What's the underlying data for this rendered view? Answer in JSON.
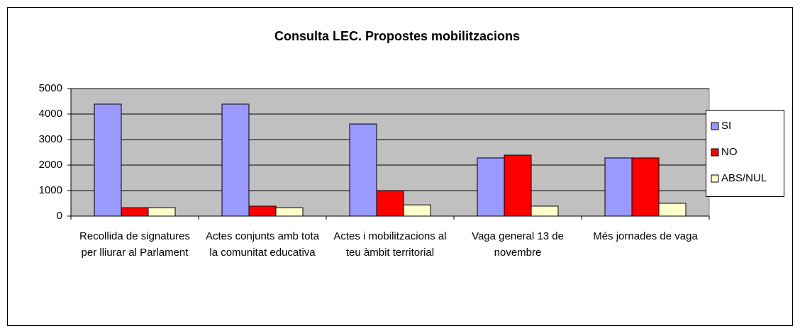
{
  "chart_data": {
    "type": "bar",
    "title": "Consulta LEC. Propostes mobilitzacions",
    "categories": [
      "Recollida de signatures per lliurar al Parlament",
      "Actes conjunts amb tota la comunitat educativa",
      "Actes i mobilitzacions al teu àmbit territorial",
      "Vaga general 13 de novembre",
      "Més jornades de vaga"
    ],
    "series": [
      {
        "name": "SI",
        "color": "#9999ff",
        "values": [
          4390,
          4390,
          3610,
          2280,
          2280
        ]
      },
      {
        "name": "NO",
        "color": "#ff0000",
        "values": [
          330,
          390,
          1000,
          2390,
          2280
        ]
      },
      {
        "name": "ABS/NUL",
        "color": "#ffffcc",
        "values": [
          330,
          330,
          440,
          390,
          500
        ]
      }
    ],
    "ylim": [
      0,
      5000
    ],
    "yticks": [
      0,
      1000,
      2000,
      3000,
      4000,
      5000
    ],
    "grid": true,
    "legend": "right"
  }
}
